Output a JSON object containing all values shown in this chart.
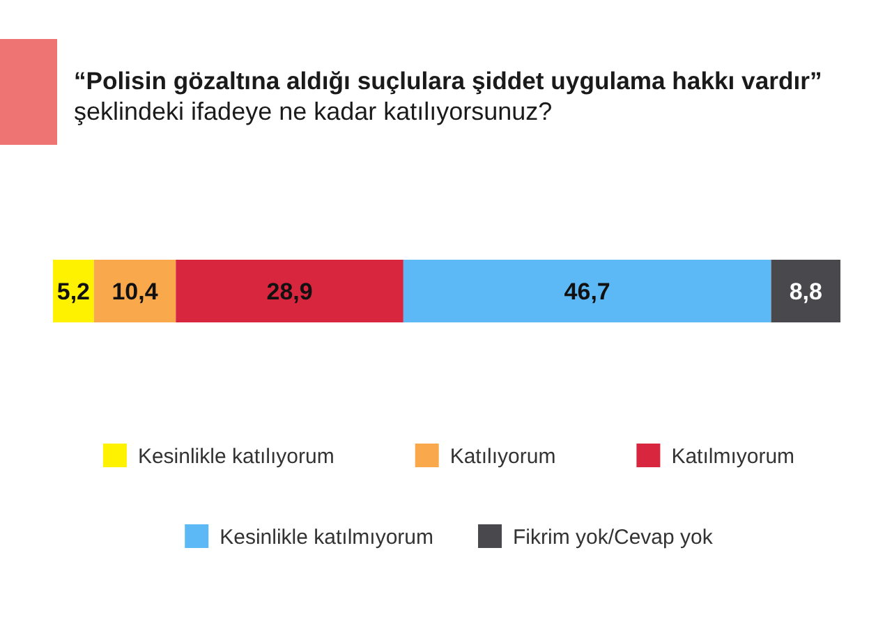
{
  "chart_data": {
    "type": "bar",
    "title": "“Polisin gözaltına aldığı suçlulara şiddet uygulama hakkı vardır”",
    "subtitle": "şeklindeki ifadeye ne kadar katılıyorsunuz?",
    "orientation": "horizontal",
    "stacked": true,
    "categories": [
      null
    ],
    "xlim": [
      0,
      100
    ],
    "legend": "bottom",
    "series": [
      {
        "name": "Kesinlikle katılıyorum",
        "color": "#fff200",
        "values": [
          5.2
        ],
        "value_labels": [
          "5,2"
        ]
      },
      {
        "name": "Katılıyorum",
        "color": "#f9a94b",
        "values": [
          10.4
        ],
        "value_labels": [
          "10,4"
        ]
      },
      {
        "name": "Katılmıyorum",
        "color": "#d7263d",
        "values": [
          28.9
        ],
        "value_labels": [
          "28,9"
        ]
      },
      {
        "name": "Kesinlikle katılmıyorum",
        "color": "#5db9f5",
        "values": [
          46.7
        ],
        "value_labels": [
          "46,7"
        ]
      },
      {
        "name": "Fikrim yok/Cevap yok",
        "color": "#48484d",
        "values": [
          8.8
        ],
        "value_labels": [
          "8,8"
        ]
      }
    ]
  }
}
